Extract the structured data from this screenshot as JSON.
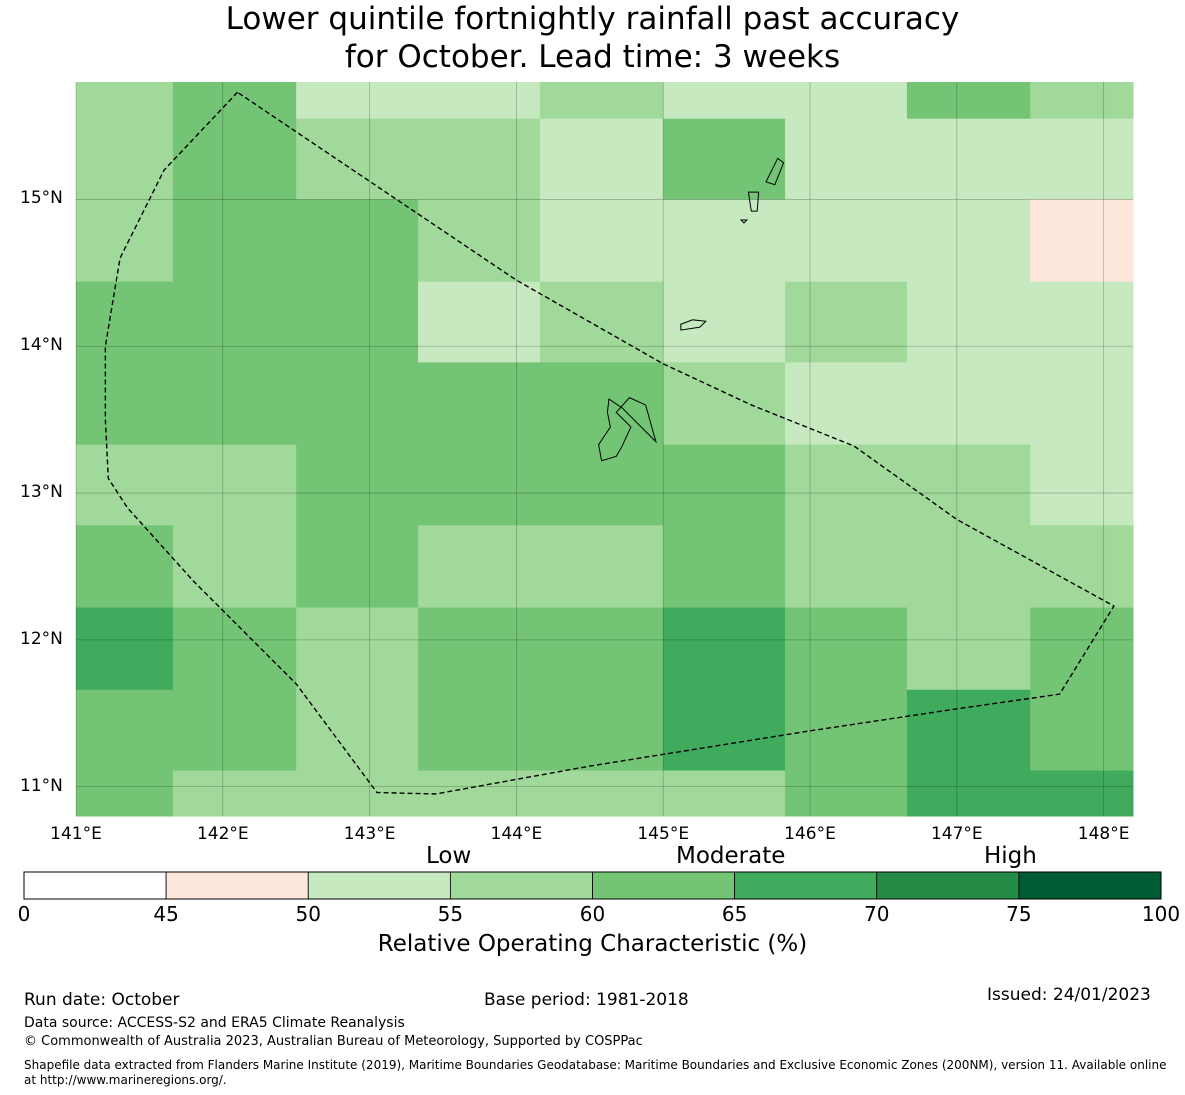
{
  "title": {
    "line1": "Lower quintile fortnightly rainfall past accuracy",
    "line2": "for October. Lead time: 3 weeks"
  },
  "map": {
    "lon_min": 141.0,
    "lon_max": 148.2,
    "lat_min": 10.8,
    "lat_max": 15.8,
    "lon_edges": [
      141.0,
      141.66,
      142.5,
      143.33,
      144.16,
      145.0,
      145.83,
      146.66,
      147.5,
      148.2
    ],
    "lat_edges": [
      15.8,
      15.55,
      15.0,
      14.44,
      13.89,
      13.33,
      12.78,
      12.22,
      11.66,
      11.11,
      10.8
    ],
    "grid_values": [
      [
        57,
        62,
        52,
        52,
        57,
        52,
        52,
        62,
        57
      ],
      [
        57,
        62,
        57,
        57,
        52,
        62,
        52,
        52,
        52
      ],
      [
        57,
        62,
        62,
        57,
        52,
        52,
        52,
        52,
        47
      ],
      [
        62,
        62,
        62,
        52,
        57,
        52,
        57,
        52,
        52
      ],
      [
        62,
        62,
        62,
        62,
        62,
        57,
        52,
        52,
        52
      ],
      [
        57,
        57,
        62,
        62,
        62,
        62,
        57,
        57,
        52
      ],
      [
        62,
        57,
        62,
        57,
        57,
        62,
        57,
        57,
        57
      ],
      [
        67,
        62,
        57,
        62,
        62,
        67,
        62,
        57,
        62
      ],
      [
        62,
        62,
        57,
        62,
        62,
        67,
        62,
        67,
        62
      ],
      [
        62,
        57,
        57,
        57,
        57,
        57,
        62,
        67,
        67
      ]
    ],
    "x_ticks": [
      {
        "lon": 141,
        "label": "141°E"
      },
      {
        "lon": 142,
        "label": "142°E"
      },
      {
        "lon": 143,
        "label": "143°E"
      },
      {
        "lon": 144,
        "label": "144°E"
      },
      {
        "lon": 145,
        "label": "145°E"
      },
      {
        "lon": 146,
        "label": "146°E"
      },
      {
        "lon": 147,
        "label": "147°E"
      },
      {
        "lon": 148,
        "label": "148°E"
      }
    ],
    "y_ticks": [
      {
        "lat": 15,
        "label": "15°N"
      },
      {
        "lat": 14,
        "label": "14°N"
      },
      {
        "lat": 13,
        "label": "13°N"
      },
      {
        "lat": 12,
        "label": "12°N"
      },
      {
        "lat": 11,
        "label": "11°N"
      }
    ],
    "eez_boundary": [
      [
        142.1,
        15.73
      ],
      [
        141.6,
        15.2
      ],
      [
        141.3,
        14.6
      ],
      [
        141.2,
        14.0
      ],
      [
        141.2,
        13.5
      ],
      [
        141.22,
        13.1
      ],
      [
        141.35,
        12.9
      ],
      [
        141.8,
        12.4
      ],
      [
        142.5,
        11.7
      ],
      [
        143.05,
        10.96
      ],
      [
        143.45,
        10.95
      ],
      [
        144.5,
        11.14
      ],
      [
        146.0,
        11.38
      ],
      [
        147.0,
        11.53
      ],
      [
        147.7,
        11.63
      ],
      [
        148.07,
        12.23
      ],
      [
        147.0,
        12.82
      ],
      [
        146.3,
        13.32
      ],
      [
        145.6,
        13.6
      ],
      [
        145.0,
        13.88
      ],
      [
        144.0,
        14.45
      ],
      [
        142.1,
        15.73
      ]
    ],
    "islands": [
      {
        "name": "Guam",
        "points": [
          [
            144.63,
            13.64
          ],
          [
            144.72,
            13.58
          ],
          [
            144.95,
            13.35
          ],
          [
            144.88,
            13.6
          ],
          [
            144.77,
            13.65
          ],
          [
            144.68,
            13.55
          ],
          [
            144.78,
            13.45
          ],
          [
            144.72,
            13.32
          ],
          [
            144.68,
            13.25
          ],
          [
            144.58,
            13.22
          ],
          [
            144.56,
            13.33
          ],
          [
            144.64,
            13.45
          ],
          [
            144.62,
            13.55
          ]
        ]
      },
      {
        "name": "Rota",
        "points": [
          [
            145.12,
            14.15
          ],
          [
            145.2,
            14.18
          ],
          [
            145.29,
            14.17
          ],
          [
            145.25,
            14.13
          ],
          [
            145.12,
            14.11
          ]
        ]
      },
      {
        "name": "Tinian",
        "points": [
          [
            145.58,
            15.05
          ],
          [
            145.65,
            15.05
          ],
          [
            145.64,
            14.92
          ],
          [
            145.6,
            14.92
          ]
        ]
      },
      {
        "name": "Saipan",
        "points": [
          [
            145.7,
            15.12
          ],
          [
            145.78,
            15.28
          ],
          [
            145.82,
            15.25
          ],
          [
            145.76,
            15.1
          ]
        ]
      },
      {
        "name": "Aguijan",
        "points": [
          [
            145.53,
            14.86
          ],
          [
            145.57,
            14.86
          ],
          [
            145.55,
            14.84
          ]
        ]
      }
    ]
  },
  "colorbar": {
    "category_labels": [
      "Low",
      "Moderate",
      "High"
    ],
    "boundaries": [
      0,
      45,
      50,
      55,
      60,
      65,
      70,
      75,
      100
    ],
    "tick_labels": [
      "0",
      "45",
      "50",
      "55",
      "60",
      "65",
      "70",
      "75",
      "100"
    ],
    "colors": [
      "#ffffff",
      "#fee8dd",
      "#c7e9c0",
      "#a1d99b",
      "#74c476",
      "#41ab5d",
      "#238b45",
      "#005a32"
    ],
    "title": "Relative Operating Characteristic (%)"
  },
  "footer": {
    "run_date": "Run date: October",
    "base_period": "Base period: 1981-2018",
    "issued": "Issued: 24/01/2023",
    "data_source": "Data source: ACCESS-S2 and ERA5 Climate Reanalysis",
    "copyright": "© Commonwealth of Australia 2023, Australian Bureau of Meteorology, Supported by COSPPac",
    "shapefile_line1": "Shapefile data extracted from Flanders Marine Institute (2019), Maritime Boundaries Geodatabase: Maritime Boundaries and Exclusive Economic Zones (200NM), version 11. Available online",
    "shapefile_line2": "at http://www.marineregions.org/."
  }
}
